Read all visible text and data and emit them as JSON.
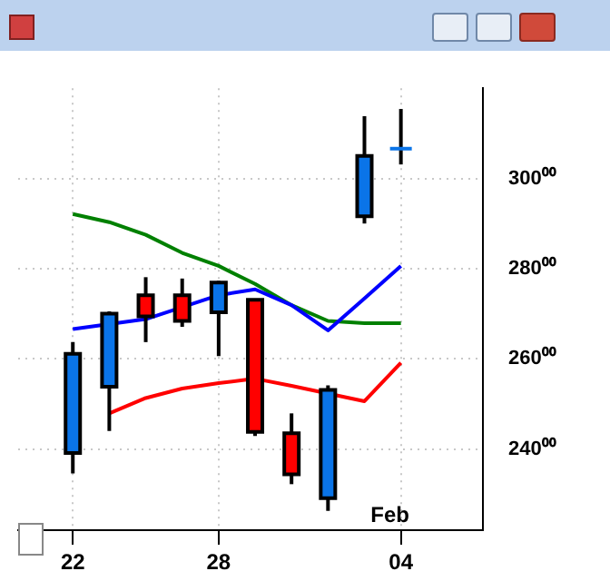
{
  "chart_data": {
    "type": "candlestick",
    "categories": [
      "22",
      null,
      null,
      null,
      "28",
      null,
      null,
      null,
      null,
      "04"
    ],
    "ohlc": [
      [
        239.1,
        263.7,
        234.6,
        261.1
      ],
      [
        253.8,
        270.5,
        244.0,
        270.0
      ],
      [
        274.1,
        278.1,
        263.7,
        269.4
      ],
      [
        274.1,
        277.8,
        267.1,
        268.4
      ],
      [
        270.3,
        277.3,
        260.6,
        276.9
      ],
      [
        273.1,
        273.1,
        242.9,
        243.8
      ],
      [
        243.5,
        247.9,
        232.2,
        234.4
      ],
      [
        229.1,
        254.1,
        226.3,
        253.1
      ],
      [
        291.6,
        313.8,
        290.0,
        305.0
      ],
      [
        306.2,
        315.4,
        303.1,
        307.0
      ]
    ],
    "colors": [
      "#0a74e8",
      "#0a74e8",
      "#ff0000",
      "#ff0000",
      "#0a74e8",
      "#ff0000",
      "#ff0000",
      "#0a74e8",
      "#0a74e8",
      "#0a74e8"
    ],
    "series": [
      {
        "type": "line",
        "color": "#0000ff",
        "values": [
          266.6,
          null,
          268.8,
          null,
          274.1,
          275.4,
          271.9,
          266.3,
          273.4,
          280.6
        ]
      },
      {
        "type": "line",
        "color": "#008000",
        "values": [
          292.1,
          290.3,
          287.5,
          283.5,
          280.6,
          276.6,
          271.9,
          268.4,
          267.9,
          267.9
        ]
      },
      {
        "type": "line",
        "color": "#ff0000",
        "values": [
          null,
          247.9,
          251.3,
          253.4,
          254.6,
          255.6,
          254.0,
          null,
          250.6,
          259.1
        ]
      }
    ],
    "ylim": [
      222,
      320
    ],
    "yticks": [
      {
        "value": 240,
        "label": "240⁰⁰"
      },
      {
        "value": 260,
        "label": "260⁰⁰"
      },
      {
        "value": 280,
        "label": "280⁰⁰"
      },
      {
        "value": 300,
        "label": "300⁰⁰"
      }
    ],
    "grid": true,
    "annotations": [
      "Feb"
    ]
  }
}
